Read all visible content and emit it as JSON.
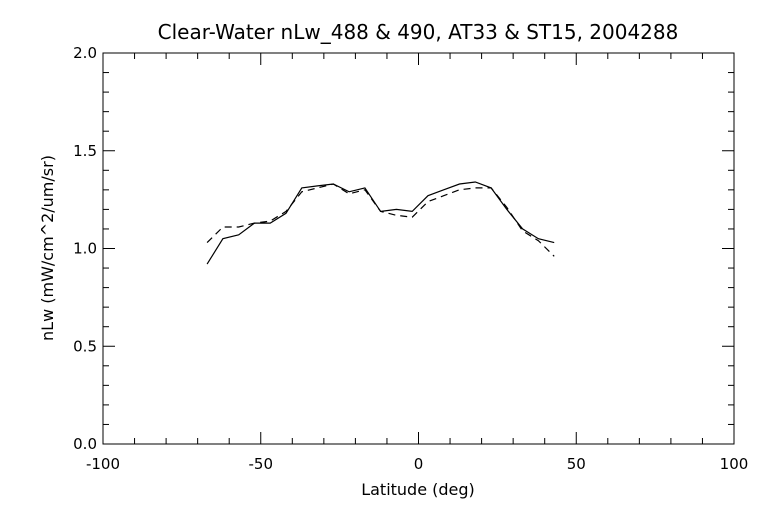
{
  "chart_data": {
    "type": "line",
    "title": "Clear-Water nLw_488 & 490, AT33 & ST15, 2004288",
    "xlabel": "Latitude (deg)",
    "ylabel": "nLw (mW/cm^2/um/sr)",
    "xlim": [
      -100,
      100
    ],
    "ylim": [
      0.0,
      2.0
    ],
    "x_ticks": [
      -100,
      -50,
      0,
      50,
      100
    ],
    "x_tick_labels": [
      "-100",
      "-50",
      "0",
      "50",
      "100"
    ],
    "y_ticks": [
      0.0,
      0.5,
      1.0,
      1.5,
      2.0
    ],
    "y_tick_labels": [
      "0.0",
      "0.5",
      "1.0",
      "1.5",
      "2.0"
    ],
    "grid": false,
    "series": [
      {
        "style": "solid",
        "x": [
          -67,
          -62,
          -57,
          -52,
          -47,
          -42,
          -37,
          -32,
          -27,
          -22,
          -17,
          -12,
          -7,
          -2,
          3,
          8,
          13,
          18,
          23,
          28,
          33,
          38,
          43
        ],
        "y": [
          0.92,
          1.05,
          1.07,
          1.13,
          1.13,
          1.18,
          1.31,
          1.32,
          1.33,
          1.29,
          1.31,
          1.19,
          1.2,
          1.19,
          1.27,
          1.3,
          1.33,
          1.34,
          1.31,
          1.2,
          1.1,
          1.05,
          1.03
        ]
      },
      {
        "style": "dashed",
        "x": [
          -67,
          -62,
          -57,
          -52,
          -47,
          -42,
          -37,
          -32,
          -27,
          -22,
          -17,
          -12,
          -7,
          -2,
          3,
          8,
          13,
          18,
          23,
          28,
          33,
          38,
          43
        ],
        "y": [
          1.03,
          1.11,
          1.11,
          1.13,
          1.14,
          1.19,
          1.29,
          1.31,
          1.33,
          1.28,
          1.3,
          1.19,
          1.17,
          1.16,
          1.24,
          1.27,
          1.3,
          1.31,
          1.31,
          1.21,
          1.09,
          1.04,
          0.96
        ]
      }
    ]
  }
}
